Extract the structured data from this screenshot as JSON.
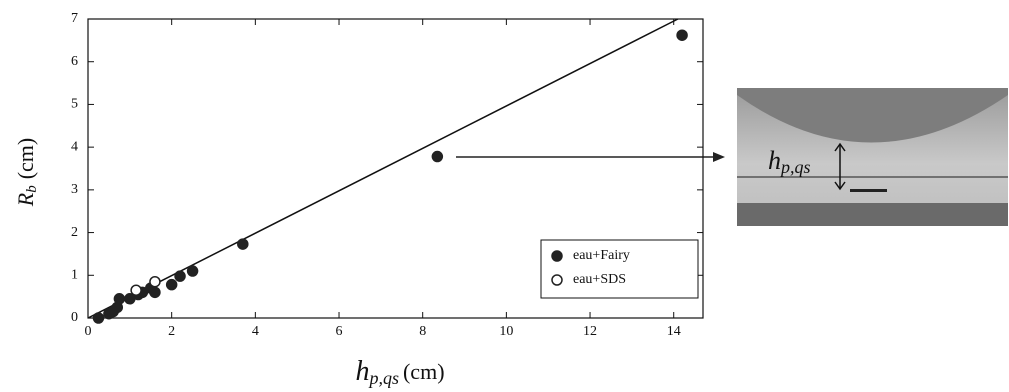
{
  "chart_data": {
    "type": "scatter",
    "xlabel": {
      "main": "h",
      "sub": "p,qs",
      "unit": "(cm)"
    },
    "ylabel": {
      "main": "R",
      "sub": "b",
      "unit": "(cm)"
    },
    "xlim": [
      0,
      14.7
    ],
    "ylim": [
      0,
      7
    ],
    "xticks": [
      0,
      2,
      4,
      6,
      8,
      10,
      12,
      14
    ],
    "yticks": [
      0,
      1,
      2,
      3,
      4,
      5,
      6,
      7
    ],
    "series": [
      {
        "name": "eau+Fairy",
        "color": "#222222",
        "filled": true,
        "x": [
          0.25,
          0.5,
          0.6,
          0.7,
          0.75,
          1.0,
          1.2,
          1.3,
          1.5,
          1.6,
          2.0,
          2.2,
          2.5,
          3.7,
          8.35,
          14.2
        ],
        "values": [
          0.0,
          0.1,
          0.15,
          0.25,
          0.45,
          0.45,
          0.55,
          0.6,
          0.7,
          0.6,
          0.78,
          0.98,
          1.1,
          1.73,
          3.78,
          6.62
        ]
      },
      {
        "name": "eau+SDS",
        "color": "#222222",
        "filled": false,
        "x": [
          1.15,
          1.6
        ],
        "values": [
          0.65,
          0.85
        ]
      }
    ],
    "fit_line": {
      "x": [
        0,
        14.1
      ],
      "values": [
        0,
        7
      ]
    },
    "legend": "lower right",
    "inset": {
      "label": {
        "main": "h",
        "sub": "p,qs"
      }
    }
  }
}
